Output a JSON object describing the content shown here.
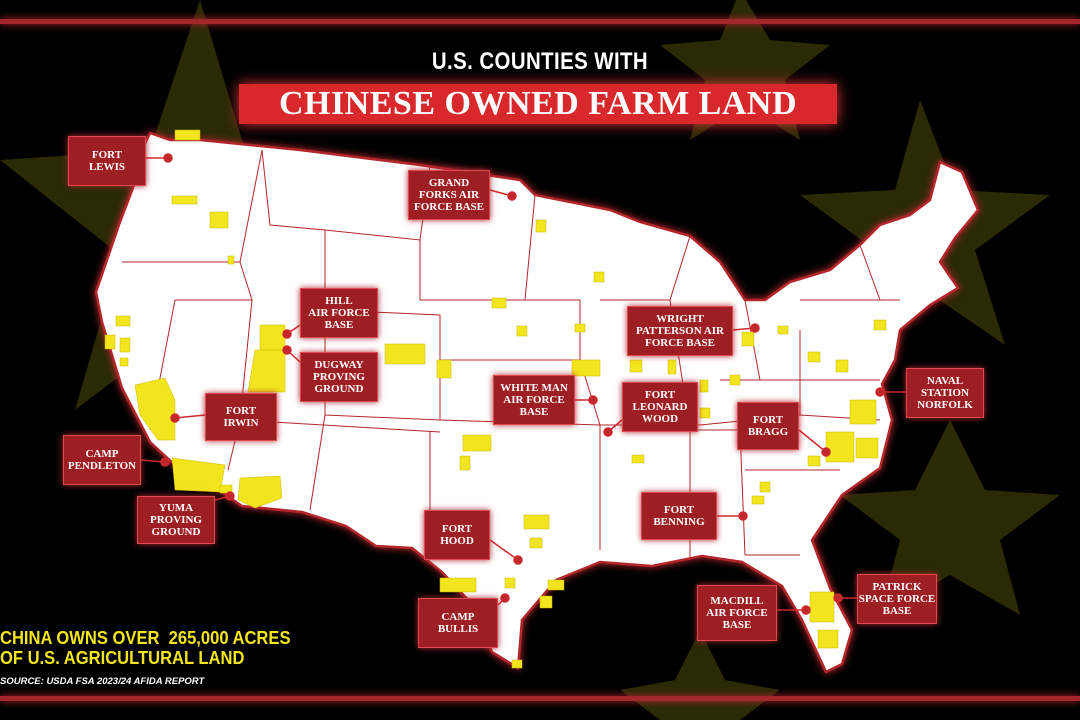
{
  "header": {
    "subtitle": "U.S. COUNTIES WITH",
    "title": "CHINESE OWNED FARM LAND"
  },
  "colors": {
    "background": "#000000",
    "map_fill": "#ffffff",
    "borders": "#b3262b",
    "farmland": "#f2e51d",
    "label_box": "#9e1f23",
    "title_box": "#d9282b",
    "background_stars": "#2a2a05"
  },
  "legend": {
    "stat_line1": "CHINA OWNS OVER  265,000 ACRES",
    "stat_line2": "OF U.S. AGRICULTURAL LAND",
    "source": "SOURCE: USDA FSA 2023/24 AFIDA REPORT"
  },
  "bases": [
    {
      "id": "fort-lewis",
      "label": "FORT\nLEWIS"
    },
    {
      "id": "grand-forks",
      "label": "GRAND\nFORKS AIR\nFORCE BASE"
    },
    {
      "id": "hill-afb",
      "label": "HILL\nAIR FORCE\nBASE"
    },
    {
      "id": "dugway",
      "label": "DUGWAY\nPROVING\nGROUND"
    },
    {
      "id": "fort-irwin",
      "label": "FORT\nIRWIN"
    },
    {
      "id": "camp-pendleton",
      "label": "CAMP\nPENDLETON"
    },
    {
      "id": "yuma",
      "label": "YUMA\nPROVING\nGROUND"
    },
    {
      "id": "whiteman",
      "label": "WHITE MAN\nAIR FORCE\nBASE"
    },
    {
      "id": "fort-leonard-wood",
      "label": "FORT\nLEONARD\nWOOD"
    },
    {
      "id": "wright-patterson",
      "label": "WRIGHT\nPATTERSON AIR\nFORCE BASE"
    },
    {
      "id": "norfolk",
      "label": "NAVAL\nSTATION\nNORFOLK"
    },
    {
      "id": "fort-bragg",
      "label": "FORT\nBRAGG"
    },
    {
      "id": "fort-benning",
      "label": "FORT\nBENNING"
    },
    {
      "id": "fort-hood",
      "label": "FORT\nHOOD"
    },
    {
      "id": "camp-bullis",
      "label": "CAMP\nBULLIS"
    },
    {
      "id": "macdill",
      "label": "MACDILL\nAIR FORCE\nBASE"
    },
    {
      "id": "patrick",
      "label": "PATRICK\nSPACE FORCE\nBASE"
    }
  ]
}
